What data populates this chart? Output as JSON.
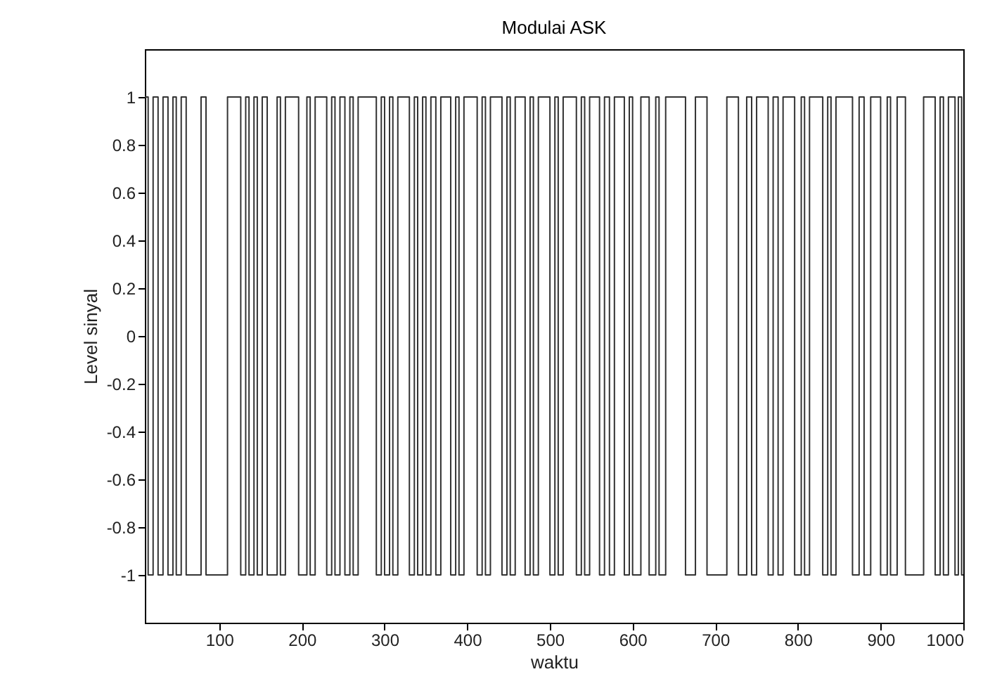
{
  "chart_data": {
    "type": "step",
    "title": "Modulai ASK",
    "xlabel": "waktu",
    "ylabel": "Level sinyal",
    "x": [
      10,
      14,
      20,
      26,
      32,
      38,
      44,
      48,
      54,
      60,
      78,
      84,
      110,
      126,
      132,
      136,
      142,
      146,
      152,
      158,
      170,
      174,
      180,
      196,
      206,
      210,
      216,
      230,
      236,
      240,
      246,
      252,
      258,
      262,
      268,
      290,
      296,
      300,
      306,
      310,
      316,
      330,
      336,
      340,
      346,
      350,
      356,
      362,
      368,
      380,
      386,
      390,
      396,
      412,
      418,
      422,
      428,
      442,
      448,
      452,
      458,
      470,
      476,
      480,
      486,
      500,
      506,
      510,
      516,
      532,
      538,
      542,
      548,
      560,
      566,
      572,
      578,
      590,
      596,
      600,
      610,
      620,
      628,
      632,
      640,
      664,
      676,
      690,
      714,
      728,
      738,
      744,
      750,
      764,
      770,
      776,
      782,
      796,
      804,
      808,
      814,
      830,
      836,
      840,
      846,
      866,
      874,
      880,
      888,
      900,
      908,
      912,
      920,
      930,
      952,
      966,
      972,
      976,
      982,
      990,
      994,
      998,
      1000
    ],
    "series": [
      {
        "color": "#333333",
        "values": [
          1,
          -1,
          1,
          -1,
          1,
          -1,
          1,
          -1,
          1,
          -1,
          1,
          -1,
          1,
          -1,
          1,
          -1,
          1,
          -1,
          1,
          -1,
          1,
          -1,
          1,
          -1,
          1,
          -1,
          1,
          -1,
          1,
          -1,
          1,
          -1,
          1,
          -1,
          1,
          -1,
          1,
          -1,
          1,
          -1,
          1,
          -1,
          1,
          -1,
          1,
          -1,
          1,
          -1,
          1,
          -1,
          1,
          -1,
          1,
          -1,
          1,
          -1,
          1,
          -1,
          1,
          -1,
          1,
          -1,
          1,
          -1,
          1,
          -1,
          1,
          -1,
          1,
          -1,
          1,
          -1,
          1,
          -1,
          1,
          -1,
          1,
          -1,
          1,
          -1,
          1,
          -1,
          1,
          -1,
          1,
          -1,
          1,
          -1,
          1,
          -1,
          1,
          -1,
          1,
          -1,
          1,
          -1,
          1,
          -1,
          1,
          -1,
          1,
          -1,
          1,
          -1,
          1,
          -1,
          1,
          -1,
          1,
          -1,
          1,
          -1,
          1,
          -1,
          1,
          -1,
          1,
          -1,
          1,
          -1,
          1,
          -1,
          -1
        ]
      }
    ],
    "xlim": [
      10,
      1000
    ],
    "xticks": [
      100,
      200,
      300,
      400,
      500,
      600,
      700,
      800,
      900,
      1000
    ],
    "ylim": [
      -1.2,
      1.2
    ],
    "yticks": [
      -1,
      -0.8,
      -0.6,
      -0.4,
      -0.2,
      0,
      0.2,
      0.4,
      0.6,
      0.8,
      1
    ],
    "grid": false
  }
}
